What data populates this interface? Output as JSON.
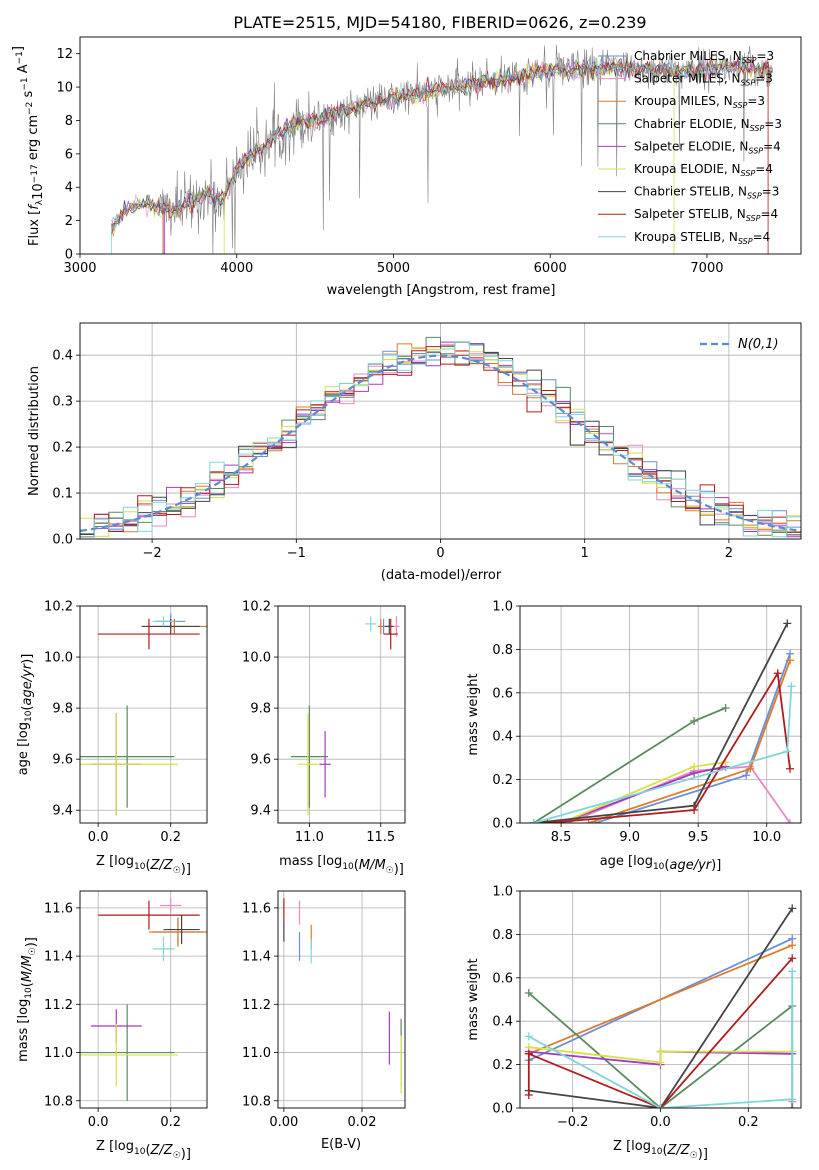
{
  "figure_title": "PLATE=2515, MJD=54180, FIBERID=0626, z=0.239",
  "series_colors": {
    "Chabrier MILES": "#6a8fd6",
    "Salpeter MILES": "#e889c2",
    "Kroupa MILES": "#dd7a2b",
    "Chabrier ELODIE": "#5a8a5e",
    "Salpeter ELODIE": "#a33bc0",
    "Kroupa ELODIE": "#d8e04a",
    "Chabrier STELIB": "#444444",
    "Salpeter STELIB": "#b01c1c",
    "Kroupa STELIB": "#7fd6da",
    "data": "#808080",
    "normal": "#5b8bd6"
  },
  "chart_data": [
    {
      "id": "spectrum",
      "type": "line",
      "title": "PLATE=2515, MJD=54180, FIBERID=0626, z=0.239",
      "xlabel": "wavelength [Angstrom, rest frame]",
      "ylabel": "Flux [f_λ 10^-17 erg cm^-2 s^-1 A^-1]",
      "xlim": [
        3000,
        7600
      ],
      "ylim": [
        0,
        13
      ],
      "xticks": [
        "3000",
        "4000",
        "5000",
        "6000",
        "7000"
      ],
      "yticks": [
        "0",
        "2",
        "4",
        "6",
        "8",
        "10",
        "12"
      ],
      "legend_position": "right",
      "legend": [
        {
          "base": "Chabrier MILES, N",
          "n": "=3"
        },
        {
          "base": "Salpeter MILES, N",
          "n": "=3"
        },
        {
          "base": "Kroupa MILES, N",
          "n": "=3"
        },
        {
          "base": "Chabrier ELODIE, N",
          "n": "=3"
        },
        {
          "base": "Salpeter ELODIE, N",
          "n": "=4"
        },
        {
          "base": "Kroupa ELODIE, N",
          "n": "=4"
        },
        {
          "base": "Chabrier STELIB, N",
          "n": "=3"
        },
        {
          "base": "Salpeter STELIB, N",
          "n": "=4"
        },
        {
          "base": "Kroupa STELIB, N",
          "n": "=4"
        }
      ],
      "legend_sub": "SSP",
      "continuum": {
        "x": [
          3200,
          3300,
          3400,
          3500,
          3600,
          3700,
          3800,
          3900,
          4000,
          4100,
          4200,
          4300,
          4400,
          4500,
          4600,
          4800,
          5000,
          5200,
          5400,
          5600,
          5800,
          6000,
          6200,
          6400,
          6600,
          6800,
          7000,
          7200,
          7400
        ],
        "y": [
          1.5,
          2.7,
          3.0,
          2.8,
          2.6,
          3.0,
          3.6,
          3.2,
          5.1,
          6.0,
          6.6,
          7.4,
          7.9,
          8.0,
          8.3,
          8.9,
          9.3,
          9.7,
          10.0,
          10.4,
          10.6,
          11.0,
          11.1,
          11.2,
          11.1,
          11.0,
          11.1,
          11.2,
          11.0
        ]
      },
      "data_range": [
        3200,
        7420
      ]
    },
    {
      "id": "residuals",
      "type": "histogram",
      "xlabel": "(data-model)/error",
      "ylabel": "Normed distribution",
      "xlim": [
        -2.5,
        2.5
      ],
      "ylim": [
        0,
        0.47
      ],
      "xticks": [
        "−2",
        "−1",
        "0",
        "1",
        "2"
      ],
      "yticks": [
        "0.0",
        "0.1",
        "0.2",
        "0.3",
        "0.4"
      ],
      "legend": "N(0,1)",
      "bin_width": 0.1,
      "grid": true
    },
    {
      "id": "age-vs-Z",
      "type": "errorbar",
      "xlabel": "Z [log10(Z/Z☉)]",
      "ylabel": "age  [log10(age/yr)]",
      "xlim": [
        -0.05,
        0.3
      ],
      "ylim": [
        9.35,
        10.2
      ],
      "xticks": [
        "0.0",
        "0.2"
      ],
      "yticks": [
        "9.4",
        "9.6",
        "9.8",
        "10.0",
        "10.2"
      ],
      "points": [
        {
          "series": "Chabrier MILES",
          "x": 0.2,
          "y": 10.14,
          "xerr": 0.04,
          "yerr": 0.03
        },
        {
          "series": "Salpeter MILES",
          "x": 0.21,
          "y": 10.12,
          "xerr": 0.04,
          "yerr": 0.03
        },
        {
          "series": "Kroupa MILES",
          "x": 0.21,
          "y": 10.12,
          "xerr": 0.09,
          "yerr": 0.03
        },
        {
          "series": "Chabrier STELIB",
          "x": 0.2,
          "y": 10.12,
          "xerr": 0.08,
          "yerr": 0.03
        },
        {
          "series": "Salpeter STELIB",
          "x": 0.14,
          "y": 10.09,
          "xerr": 0.14,
          "yerr": 0.06
        },
        {
          "series": "Kroupa STELIB",
          "x": 0.18,
          "y": 10.14,
          "xerr": 0.03,
          "yerr": 0.02
        },
        {
          "series": "Chabrier ELODIE",
          "x": 0.08,
          "y": 9.61,
          "xerr": 0.13,
          "yerr": 0.2
        },
        {
          "series": "Salpeter ELODIE",
          "x": 0.05,
          "y": 9.58,
          "xerr": 0.07,
          "yerr": 0.2
        },
        {
          "series": "Kroupa ELODIE",
          "x": 0.05,
          "y": 9.58,
          "xerr": 0.17,
          "yerr": 0.2
        }
      ]
    },
    {
      "id": "age-vs-mass",
      "type": "errorbar",
      "xlabel": "mass [log10(M/M☉)]",
      "ylabel": "",
      "xlim": [
        10.78,
        11.67
      ],
      "ylim": [
        9.35,
        10.2
      ],
      "xticks": [
        "11.0",
        "11.5"
      ],
      "yticks": [
        "9.4",
        "9.6",
        "9.8",
        "10.0",
        "10.2"
      ],
      "points": [
        {
          "series": "Chabrier MILES",
          "x": 11.52,
          "y": 10.12,
          "xerr": 0.03,
          "yerr": 0.03
        },
        {
          "series": "Salpeter MILES",
          "x": 11.61,
          "y": 10.12,
          "xerr": 0.02,
          "yerr": 0.04
        },
        {
          "series": "Kroupa MILES",
          "x": 11.5,
          "y": 10.12,
          "xerr": 0.02,
          "yerr": 0.03
        },
        {
          "series": "Chabrier STELIB",
          "x": 11.56,
          "y": 10.12,
          "xerr": 0.03,
          "yerr": 0.03
        },
        {
          "series": "Salpeter STELIB",
          "x": 11.57,
          "y": 10.09,
          "xerr": 0.05,
          "yerr": 0.06
        },
        {
          "series": "Kroupa STELIB",
          "x": 11.43,
          "y": 10.13,
          "xerr": 0.04,
          "yerr": 0.03
        },
        {
          "series": "Chabrier ELODIE",
          "x": 11.0,
          "y": 9.61,
          "xerr": 0.13,
          "yerr": 0.2
        },
        {
          "series": "Salpeter ELODIE",
          "x": 11.11,
          "y": 9.58,
          "xerr": 0.04,
          "yerr": 0.13
        },
        {
          "series": "Kroupa ELODIE",
          "x": 10.99,
          "y": 9.58,
          "xerr": 0.07,
          "yerr": 0.2
        }
      ]
    },
    {
      "id": "weight-vs-age",
      "type": "line",
      "xlabel": "age  [log10(age/yr)]",
      "ylabel": "mass weight",
      "xlim": [
        8.2,
        10.25
      ],
      "ylim": [
        0,
        1
      ],
      "xticks": [
        "8.5",
        "9.0",
        "9.5",
        "10.0"
      ],
      "yticks": [
        "0.0",
        "0.2",
        "0.4",
        "0.6",
        "0.8",
        "1.0"
      ],
      "series": [
        {
          "name": "Chabrier MILES",
          "x": [
            8.75,
            9.85,
            10.17
          ],
          "y": [
            0.0,
            0.22,
            0.78
          ]
        },
        {
          "name": "Salpeter MILES",
          "x": [
            8.55,
            9.47,
            9.88,
            10.17
          ],
          "y": [
            0.0,
            0.24,
            0.26,
            0.0
          ]
        },
        {
          "name": "Kroupa MILES",
          "x": [
            8.7,
            9.88,
            10.17
          ],
          "y": [
            0.0,
            0.25,
            0.75
          ]
        },
        {
          "name": "Chabrier ELODIE",
          "x": [
            8.3,
            9.47,
            9.7
          ],
          "y": [
            0.0,
            0.47,
            0.53
          ]
        },
        {
          "name": "Salpeter ELODIE",
          "x": [
            8.5,
            9.47,
            9.7
          ],
          "y": [
            0.0,
            0.23,
            0.26
          ]
        },
        {
          "name": "Kroupa ELODIE",
          "x": [
            8.5,
            9.47,
            9.7
          ],
          "y": [
            0.0,
            0.26,
            0.28
          ]
        },
        {
          "name": "Chabrier STELIB",
          "x": [
            8.3,
            9.47,
            10.15
          ],
          "y": [
            0.0,
            0.08,
            0.92
          ]
        },
        {
          "name": "Salpeter STELIB",
          "x": [
            8.4,
            9.47,
            10.08,
            10.17
          ],
          "y": [
            0.0,
            0.06,
            0.69,
            0.25
          ]
        },
        {
          "name": "Kroupa STELIB",
          "x": [
            8.3,
            10.15,
            10.18
          ],
          "y": [
            0.0,
            0.33,
            0.63
          ]
        }
      ]
    },
    {
      "id": "mass-vs-Z",
      "type": "errorbar",
      "xlabel": "Z [log10(Z/Z☉)]",
      "ylabel": "mass [log10(M/M☉)]",
      "xlim": [
        -0.05,
        0.3
      ],
      "ylim": [
        10.77,
        11.67
      ],
      "xticks": [
        "0.0",
        "0.2"
      ],
      "yticks": [
        "10.8",
        "11.0",
        "11.2",
        "11.4",
        "11.6"
      ],
      "points": [
        {
          "series": "Chabrier MILES",
          "x": 0.22,
          "y": 11.5,
          "xerr": 0.07,
          "yerr": 0.06
        },
        {
          "series": "Salpeter MILES",
          "x": 0.2,
          "y": 11.61,
          "xerr": 0.03,
          "yerr": 0.03
        },
        {
          "series": "Kroupa MILES",
          "x": 0.22,
          "y": 11.5,
          "xerr": 0.08,
          "yerr": 0.06
        },
        {
          "series": "Chabrier STELIB",
          "x": 0.23,
          "y": 11.51,
          "xerr": 0.05,
          "yerr": 0.06
        },
        {
          "series": "Salpeter STELIB",
          "x": 0.14,
          "y": 11.57,
          "xerr": 0.14,
          "yerr": 0.06
        },
        {
          "series": "Kroupa STELIB",
          "x": 0.18,
          "y": 11.43,
          "xerr": 0.03,
          "yerr": 0.05
        },
        {
          "series": "Chabrier ELODIE",
          "x": 0.08,
          "y": 11.0,
          "xerr": 0.13,
          "yerr": 0.2
        },
        {
          "series": "Salpeter ELODIE",
          "x": 0.05,
          "y": 11.11,
          "xerr": 0.07,
          "yerr": 0.07
        },
        {
          "series": "Kroupa ELODIE",
          "x": 0.05,
          "y": 10.99,
          "xerr": 0.17,
          "yerr": 0.13
        }
      ]
    },
    {
      "id": "mass-vs-EBV",
      "type": "errorbar",
      "xlabel": "E(B-V)",
      "ylabel": "",
      "xlim": [
        -0.0015,
        0.031
      ],
      "ylim": [
        10.77,
        11.67
      ],
      "xticks": [
        "0.00",
        "0.02"
      ],
      "yticks": [
        "10.8",
        "11.0",
        "11.2",
        "11.4",
        "11.6"
      ],
      "points": [
        {
          "series": "Chabrier MILES",
          "x": 0.004,
          "y": 11.44,
          "xerr": 0.0,
          "yerr": 0.06
        },
        {
          "series": "Salpeter MILES",
          "x": 0.004,
          "y": 11.58,
          "xerr": 0.0,
          "yerr": 0.05
        },
        {
          "series": "Kroupa MILES",
          "x": 0.007,
          "y": 11.48,
          "xerr": 0.0,
          "yerr": 0.05
        },
        {
          "series": "Chabrier STELIB",
          "x": 0.0,
          "y": 11.5,
          "xerr": 0.0,
          "yerr": 0.04
        },
        {
          "series": "Salpeter STELIB",
          "x": 0.0,
          "y": 11.59,
          "xerr": 0.0,
          "yerr": 0.05
        },
        {
          "series": "Kroupa STELIB",
          "x": 0.007,
          "y": 11.42,
          "xerr": 0.0,
          "yerr": 0.05
        },
        {
          "series": "Chabrier ELODIE",
          "x": 0.03,
          "y": 11.0,
          "xerr": 0.0,
          "yerr": 0.14
        },
        {
          "series": "Salpeter ELODIE",
          "x": 0.027,
          "y": 11.06,
          "xerr": 0.0,
          "yerr": 0.11
        },
        {
          "series": "Kroupa ELODIE",
          "x": 0.03,
          "y": 10.95,
          "xerr": 0.0,
          "yerr": 0.12
        }
      ]
    },
    {
      "id": "weight-vs-Z",
      "type": "line",
      "xlabel": "Z [log10(Z/Z☉)]",
      "ylabel": "mass weight",
      "xlim": [
        -0.32,
        0.32
      ],
      "ylim": [
        0,
        1
      ],
      "xticks": [
        "−0.2",
        "0.0",
        "0.2"
      ],
      "yticks": [
        "0.0",
        "0.2",
        "0.4",
        "0.6",
        "0.8",
        "1.0"
      ],
      "series": [
        {
          "name": "Chabrier MILES",
          "x": [
            -0.3,
            0.3
          ],
          "y": [
            0.22,
            0.78
          ]
        },
        {
          "name": "Salpeter MILES",
          "x": [
            0.3,
            0.3
          ],
          "y": [
            0.0,
            0.03
          ]
        },
        {
          "name": "Kroupa MILES",
          "x": [
            -0.3,
            0.3
          ],
          "y": [
            0.25,
            0.75
          ]
        },
        {
          "name": "Chabrier ELODIE",
          "x": [
            -0.3,
            0.0,
            0.3,
            0.3
          ],
          "y": [
            0.53,
            0.0,
            0.47,
            0.0
          ]
        },
        {
          "name": "Salpeter ELODIE",
          "x": [
            -0.3,
            0.0,
            0.0,
            0.3
          ],
          "y": [
            0.26,
            0.2,
            0.26,
            0.25
          ]
        },
        {
          "name": "Kroupa ELODIE",
          "x": [
            -0.3,
            0.0,
            0.0,
            0.3
          ],
          "y": [
            0.28,
            0.21,
            0.26,
            0.26
          ]
        },
        {
          "name": "Chabrier STELIB",
          "x": [
            -0.3,
            0.0,
            0.3
          ],
          "y": [
            0.08,
            0.0,
            0.92
          ]
        },
        {
          "name": "Salpeter STELIB",
          "x": [
            -0.3,
            -0.3,
            0.0,
            0.3
          ],
          "y": [
            0.06,
            0.25,
            0.0,
            0.69
          ]
        },
        {
          "name": "Kroupa STELIB",
          "x": [
            -0.3,
            0.0,
            0.3,
            0.3
          ],
          "y": [
            0.33,
            0.0,
            0.04,
            0.63
          ]
        }
      ]
    }
  ]
}
